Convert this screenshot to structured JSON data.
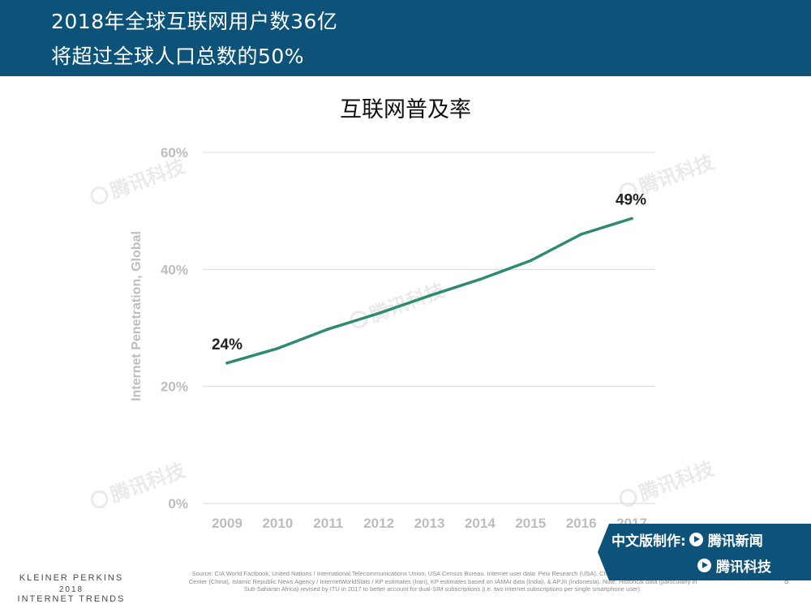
{
  "header": {
    "line1": "2018年全球互联网用户数36亿",
    "line2": "将超过全球人口总数的50%"
  },
  "chart_data": {
    "type": "line",
    "title": "互联网普及率",
    "ylabel": "Internet Penetration, Global",
    "xlabel": "",
    "categories": [
      "2009",
      "2010",
      "2011",
      "2012",
      "2013",
      "2014",
      "2015",
      "2016",
      "2017"
    ],
    "series": [
      {
        "values": [
          24,
          26.5,
          29.8,
          32.5,
          35.5,
          38.3,
          41.5,
          46,
          48.7
        ],
        "color": "#2e8b6f"
      }
    ],
    "yticks": [
      "0%",
      "20%",
      "40%",
      "60%"
    ],
    "ylim": [
      0,
      60
    ],
    "grid": true,
    "annotations": [
      {
        "index": 0,
        "text": "24%"
      },
      {
        "index": 8,
        "text": "49%"
      }
    ]
  },
  "footer": {
    "brand_line1": "KLEINER PERKINS",
    "brand_line2": "2018",
    "brand_line3": "INTERNET TRENDS",
    "source": "Source: CIA World Factbook, United Nations / International Telecommunications Union, USA Census Bureau. Internet user data: Pew Research (USA), China Internet Network Information Center (China), Islamic Republic News Agency / InternetWorldStats / KP estimates (Iran), KP estimates based on IAMAI data (India), & APJII (Indonesia). Note: Historical data (particularly in Sub-Saharan Africa) revised by ITU in 2017 to better account for dual-SIM subscriptions (i.e. two internet subscriptions per single smartphone user).",
    "page_number": "8"
  },
  "badge": {
    "label": "中文版制作:",
    "brand1": "腾讯新闻",
    "brand2": "腾讯科技"
  },
  "watermark_text": "腾讯科技",
  "colors": {
    "header_bg": "#0d5379",
    "line": "#2e8b6f",
    "grid": "#d9d9d9",
    "axis_text": "#bdbdbd"
  }
}
